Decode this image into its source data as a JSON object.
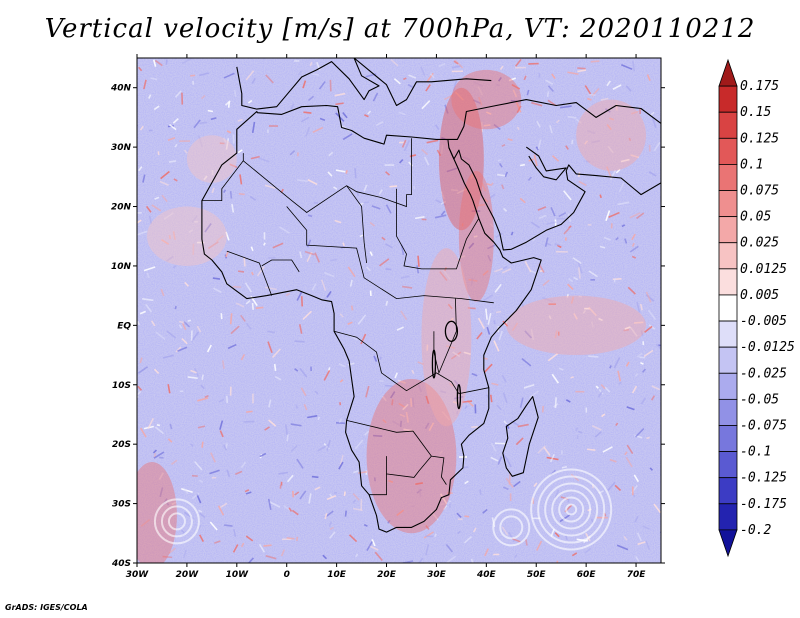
{
  "title": "Vertical velocity [m/s] at 700hPa, VT: 2020110212",
  "footer": "GrADS: IGES/COLA",
  "chart_data": {
    "type": "heatmap",
    "title": "Vertical velocity [m/s] at 700hPa, VT: 2020110212",
    "variable": "Vertical velocity",
    "units": "m/s",
    "level": "700hPa",
    "valid_time": "2020110212",
    "xlim": [
      -30,
      75
    ],
    "ylim": [
      -40,
      45
    ],
    "x_ticks": [
      {
        "value": -30,
        "label": "30W"
      },
      {
        "value": -20,
        "label": "20W"
      },
      {
        "value": -10,
        "label": "10W"
      },
      {
        "value": 0,
        "label": "0"
      },
      {
        "value": 10,
        "label": "10E"
      },
      {
        "value": 20,
        "label": "20E"
      },
      {
        "value": 30,
        "label": "30E"
      },
      {
        "value": 40,
        "label": "40E"
      },
      {
        "value": 50,
        "label": "50E"
      },
      {
        "value": 60,
        "label": "60E"
      },
      {
        "value": 70,
        "label": "70E"
      }
    ],
    "y_ticks": [
      {
        "value": 40,
        "label": "40N"
      },
      {
        "value": 30,
        "label": "30N"
      },
      {
        "value": 20,
        "label": "20N"
      },
      {
        "value": 10,
        "label": "10N"
      },
      {
        "value": 0,
        "label": "EQ"
      },
      {
        "value": -10,
        "label": "10S"
      },
      {
        "value": -20,
        "label": "20S"
      },
      {
        "value": -30,
        "label": "30S"
      },
      {
        "value": -40,
        "label": "40S"
      }
    ],
    "colorbar": {
      "levels": [
        "0.175",
        "0.15",
        "0.125",
        "0.1",
        "0.075",
        "0.05",
        "0.025",
        "0.0125",
        "0.005",
        "-0.005",
        "-0.0125",
        "-0.025",
        "-0.05",
        "-0.075",
        "-0.1",
        "-0.125",
        "-0.175",
        "-0.2"
      ],
      "colors": [
        "#a01a1a",
        "#c82a2a",
        "#d94343",
        "#e25858",
        "#ea7474",
        "#ef8f8f",
        "#f3a8a8",
        "#f7c3c3",
        "#fbdede",
        "#ffffff",
        "#dedef9",
        "#c4c4f3",
        "#ababee",
        "#9191e6",
        "#7777dd",
        "#5a5ad2",
        "#3c3cc4",
        "#2323b0",
        "#12129a"
      ]
    }
  }
}
